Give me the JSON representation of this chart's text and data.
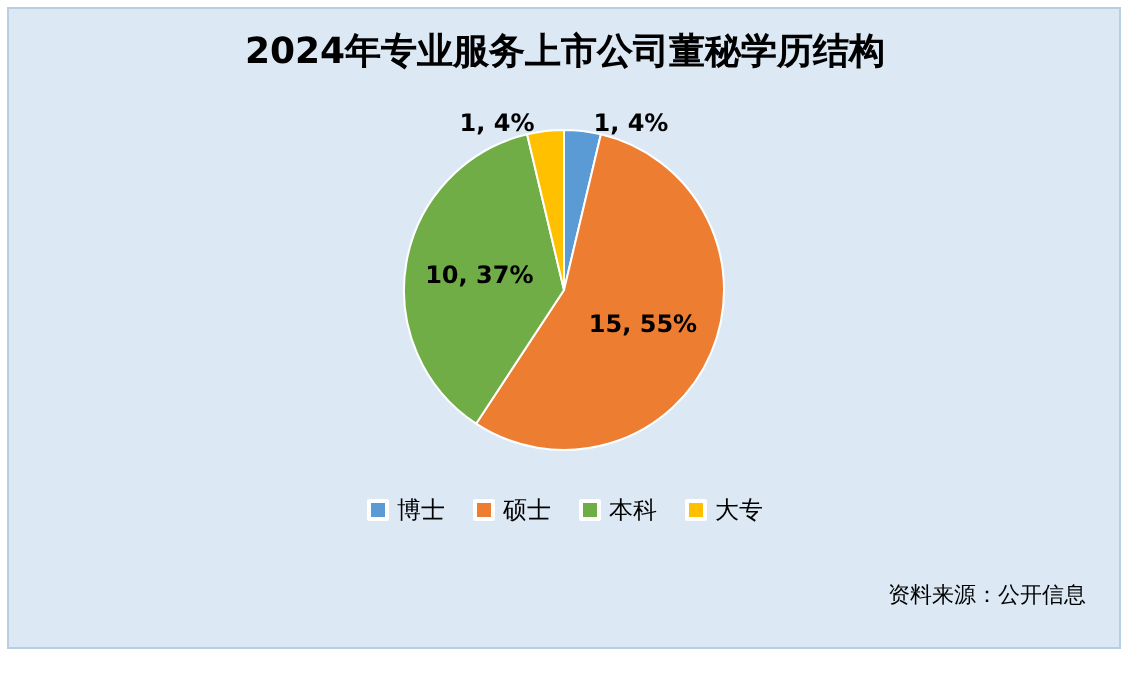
{
  "chart_data": {
    "type": "pie",
    "title": "2024年专业服务上市公司董秘学历结构",
    "categories": [
      "博士",
      "硕士",
      "本科",
      "大专"
    ],
    "values": [
      1,
      15,
      10,
      1
    ],
    "colors": [
      "#5b9bd5",
      "#ed7d31",
      "#70ad47",
      "#ffc000"
    ],
    "value_labels": [
      "1, 4%",
      "15, 55%",
      "10, 37%",
      "1, 4%"
    ],
    "legend": "bottom",
    "annotations": [
      "资料来源：公开信息"
    ]
  }
}
